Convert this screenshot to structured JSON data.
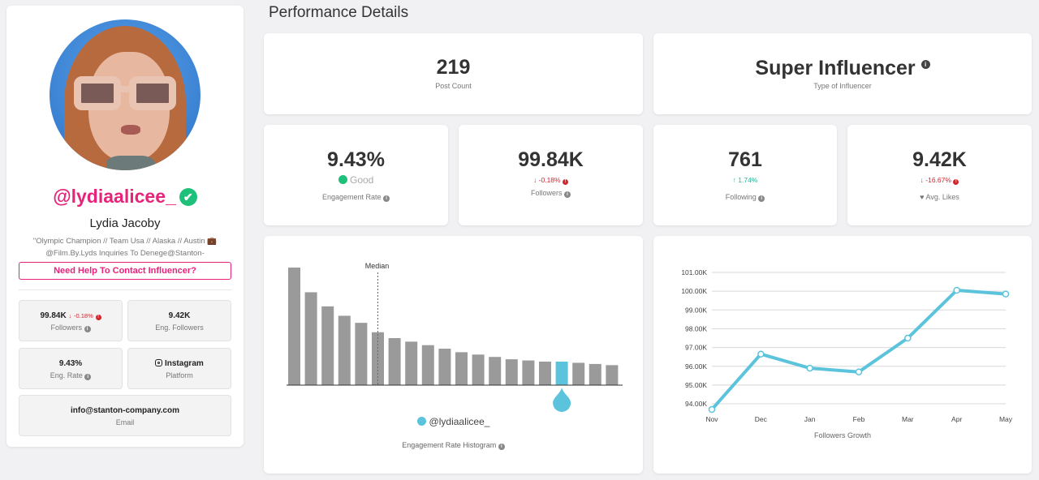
{
  "profile": {
    "handle": "@lydiaalicee_",
    "verified_icon": "✔",
    "name": "Lydia Jacoby",
    "bio_line1": "\"Olympic Champion // Team Usa // Alaska // Austin 💼",
    "bio_line2": "@Film.By.Lyds Inquiries To Denege@Stanton-Company.Com\"",
    "contact_button": "Need Help To Contact Influencer?",
    "stats": {
      "followers_value": "99.84K",
      "followers_change": "-0.18%",
      "followers_label": "Followers",
      "eng_followers_value": "9.42K",
      "eng_followers_label": "Eng. Followers",
      "eng_rate_value": "9.43%",
      "eng_rate_label": "Eng. Rate",
      "platform_value": "Instagram",
      "platform_label": "Platform",
      "email_value": "info@stanton-company.com",
      "email_label": "Email"
    }
  },
  "page_title": "Performance Details",
  "metrics": {
    "post_count_value": "219",
    "post_count_label": "Post Count",
    "influencer_type_value": "Super Influencer",
    "influencer_type_label": "Type of Influencer",
    "engagement_rate_value": "9.43%",
    "engagement_quality": "Good",
    "engagement_rate_label": "Engagement Rate",
    "followers_value": "99.84K",
    "followers_change": "-0.18%",
    "followers_label": "Followers",
    "following_value": "761",
    "following_change": "1.74%",
    "following_label": "Following",
    "avg_likes_value": "9.42K",
    "avg_likes_change": "-16.67%",
    "avg_likes_label": "Avg. Likes"
  },
  "colors": {
    "accent_pink": "#e8237a",
    "good_green": "#1ec07a",
    "negative_red": "#d0262e",
    "positive_teal": "#2bb39a",
    "series_blue": "#5bc4dc",
    "bar_gray": "#9a9a9a"
  },
  "chart_data": [
    {
      "type": "bar",
      "title": "Engagement Rate Histogram",
      "annotation": "Median",
      "median_index": 5,
      "highlight_index": 16,
      "legend": "@lydiaalicee_",
      "values": [
        100,
        79,
        67,
        59,
        53,
        45,
        40,
        37,
        34,
        31,
        28,
        26,
        24,
        22,
        21,
        20,
        20,
        19,
        18,
        17
      ]
    },
    {
      "type": "line",
      "title": "Followers Growth",
      "x": [
        "Nov",
        "Dec",
        "Jan",
        "Feb",
        "Mar",
        "Apr",
        "May"
      ],
      "series": [
        {
          "values": [
            93.7,
            96.65,
            95.9,
            95.7,
            97.5,
            100.05,
            99.85
          ]
        }
      ],
      "y_ticks": [
        "94.00K",
        "95.00K",
        "96.00K",
        "97.00K",
        "98.00K",
        "99.00K",
        "100.00K",
        "101.00K"
      ],
      "ylim": [
        93.7,
        101.0
      ],
      "grid": true
    }
  ]
}
